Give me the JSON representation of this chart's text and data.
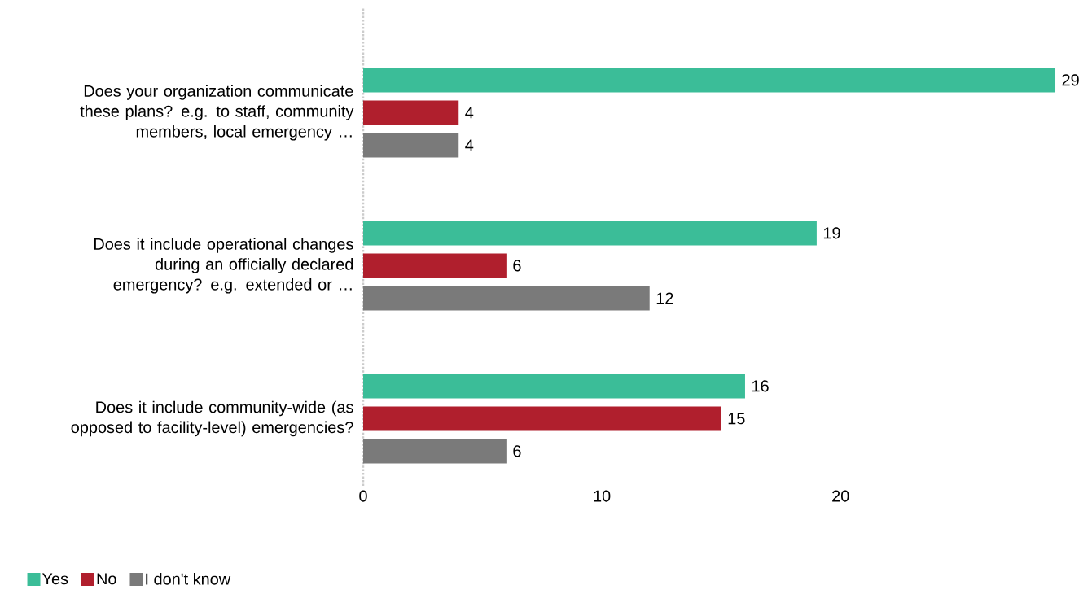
{
  "chart_data": {
    "type": "bar",
    "orientation": "horizontal",
    "categories": [
      "Does your organization communicate these plans? e.g. to staff, community members, local emergency …",
      "Does it include operational changes during an officially declared emergency? e.g. extended or …",
      "Does it include community-wide (as opposed to facility-level) emergencies?"
    ],
    "series": [
      {
        "name": "Yes",
        "color": "#3bbd98",
        "values": [
          29,
          19,
          16
        ]
      },
      {
        "name": "No",
        "color": "#b01f2d",
        "values": [
          4,
          6,
          15
        ]
      },
      {
        "name": "I don't know",
        "color": "#7a7a7a",
        "values": [
          4,
          12,
          6
        ]
      }
    ],
    "xlim": [
      0,
      29
    ],
    "xticks": [
      0,
      10,
      20
    ],
    "data_labels": true,
    "legend": "bottom left"
  }
}
